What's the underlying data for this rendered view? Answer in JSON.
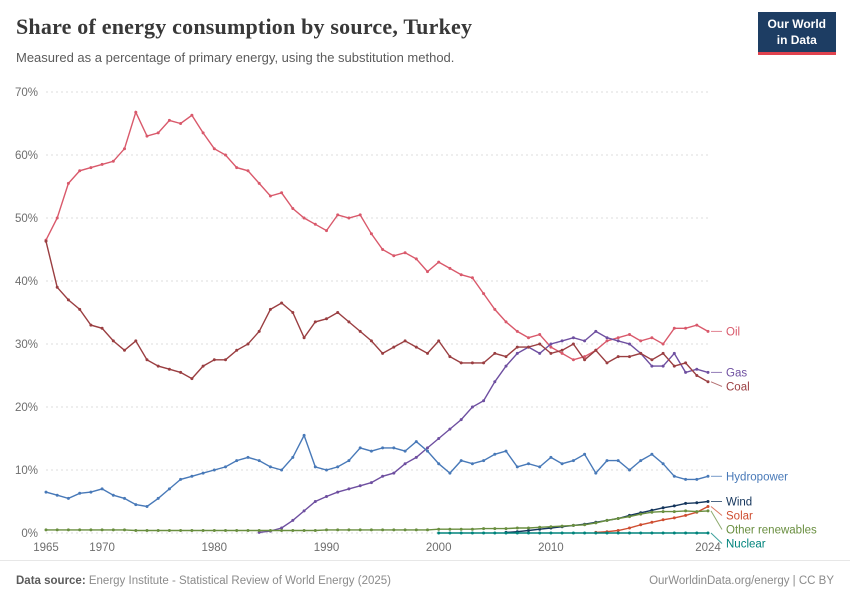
{
  "logo": {
    "line1": "Our World",
    "line2": "in Data",
    "bg_color": "#1d3d63",
    "accent_color": "#e0424e"
  },
  "footer": {
    "source_label": "Data source:",
    "source_text": " Energy Institute - Statistical Review of World Energy (2025)",
    "right_text": "OurWorldinData.org/energy | CC BY"
  },
  "chart_data": {
    "type": "line",
    "title": "Share of energy consumption by source, Turkey",
    "subtitle": "Measured as a percentage of primary energy, using the substitution method.",
    "ylim": [
      0,
      70
    ],
    "yticks": [
      0,
      10,
      20,
      30,
      40,
      50,
      60,
      70
    ],
    "xticks": [
      1965,
      1970,
      1980,
      1990,
      2000,
      2010,
      2024
    ],
    "ytick_suffix": "%",
    "grid": true,
    "legend_position": "right-end-labels",
    "years": [
      1965,
      1966,
      1967,
      1968,
      1969,
      1970,
      1971,
      1972,
      1973,
      1974,
      1975,
      1976,
      1977,
      1978,
      1979,
      1980,
      1981,
      1982,
      1983,
      1984,
      1985,
      1986,
      1987,
      1988,
      1989,
      1990,
      1991,
      1992,
      1993,
      1994,
      1995,
      1996,
      1997,
      1998,
      1999,
      2000,
      2001,
      2002,
      2003,
      2004,
      2005,
      2006,
      2007,
      2008,
      2009,
      2010,
      2011,
      2012,
      2013,
      2014,
      2015,
      2016,
      2017,
      2018,
      2019,
      2020,
      2021,
      2022,
      2023,
      2024
    ],
    "series": [
      {
        "name": "Oil",
        "color": "#d9596b",
        "values": [
          46.5,
          50,
          55.5,
          57.5,
          58,
          58.5,
          59,
          61,
          66.8,
          63,
          63.5,
          65.5,
          65,
          66.3,
          63.5,
          61,
          60,
          58,
          57.5,
          55.5,
          53.5,
          54,
          51.5,
          50,
          49,
          48,
          50.5,
          50,
          50.5,
          47.5,
          45,
          44,
          44.5,
          43.5,
          41.5,
          43,
          42,
          41,
          40.5,
          38,
          35.5,
          33.5,
          32,
          31,
          31.5,
          29.5,
          28.5,
          27.5,
          28,
          29,
          30.5,
          31,
          31.5,
          30.5,
          31,
          30,
          32.5,
          32.5,
          33,
          32
        ]
      },
      {
        "name": "Gas",
        "color": "#6e4fa0",
        "values": [
          null,
          null,
          null,
          null,
          null,
          null,
          null,
          null,
          null,
          null,
          null,
          null,
          null,
          null,
          null,
          null,
          null,
          null,
          null,
          0.1,
          0.3,
          0.8,
          2,
          3.5,
          5,
          5.8,
          6.5,
          7,
          7.5,
          8,
          9,
          9.5,
          11,
          12,
          13.5,
          15,
          16.5,
          18,
          20,
          21,
          24,
          26.5,
          28.5,
          29.5,
          28.5,
          30,
          30.5,
          31,
          30.5,
          32,
          31,
          30.5,
          30,
          28.5,
          26.5,
          26.5,
          28.5,
          25.5,
          26,
          25.5
        ]
      },
      {
        "name": "Coal",
        "color": "#9a3e41",
        "values": [
          46.3,
          39,
          37,
          35.5,
          33,
          32.5,
          30.5,
          29,
          30.5,
          27.5,
          26.5,
          26,
          25.5,
          24.5,
          26.5,
          27.5,
          27.5,
          29,
          30,
          32,
          35.5,
          36.5,
          35,
          31,
          33.5,
          34,
          35,
          33.5,
          32,
          30.5,
          28.5,
          29.5,
          30.5,
          29.5,
          28.5,
          30.5,
          28,
          27,
          27,
          27,
          28.5,
          28,
          29.5,
          29.5,
          30,
          28.5,
          29,
          30,
          27.5,
          29,
          27,
          28,
          28,
          28.5,
          27.5,
          28.5,
          26.5,
          27,
          25,
          24
        ]
      },
      {
        "name": "Hydropower",
        "color": "#4879b8",
        "values": [
          6.5,
          6,
          5.5,
          6.3,
          6.5,
          7,
          6,
          5.5,
          4.5,
          4.2,
          5.5,
          7,
          8.5,
          9,
          9.5,
          10,
          10.5,
          11.5,
          12,
          11.5,
          10.5,
          10,
          12,
          15.5,
          10.5,
          10,
          10.5,
          11.5,
          13.5,
          13,
          13.5,
          13.5,
          13,
          14.5,
          13,
          11,
          9.5,
          11.5,
          11,
          11.5,
          12.5,
          13,
          10.5,
          11,
          10.5,
          12,
          11,
          11.5,
          12.5,
          9.5,
          11.5,
          11.5,
          10,
          11.5,
          12.5,
          11,
          9,
          8.5,
          8.5,
          9
        ]
      },
      {
        "name": "Wind",
        "color": "#14355c",
        "values": [
          null,
          null,
          null,
          null,
          null,
          null,
          null,
          null,
          null,
          null,
          null,
          null,
          null,
          null,
          null,
          null,
          null,
          null,
          null,
          null,
          null,
          null,
          null,
          null,
          null,
          null,
          null,
          null,
          null,
          null,
          null,
          null,
          null,
          null,
          null,
          null,
          null,
          null,
          null,
          null,
          null,
          0.1,
          0.2,
          0.4,
          0.6,
          0.8,
          1,
          1.2,
          1.4,
          1.7,
          2,
          2.3,
          2.8,
          3.2,
          3.6,
          4,
          4.3,
          4.7,
          4.8,
          5
        ]
      },
      {
        "name": "Solar",
        "color": "#cf4e31",
        "values": [
          null,
          null,
          null,
          null,
          null,
          null,
          null,
          null,
          null,
          null,
          null,
          null,
          null,
          null,
          null,
          null,
          null,
          null,
          null,
          null,
          null,
          null,
          null,
          null,
          null,
          null,
          null,
          null,
          null,
          null,
          null,
          null,
          null,
          null,
          null,
          null,
          null,
          null,
          null,
          null,
          null,
          null,
          null,
          null,
          null,
          null,
          null,
          null,
          null,
          0.1,
          0.2,
          0.4,
          0.8,
          1.3,
          1.7,
          2.1,
          2.4,
          2.8,
          3.3,
          4.2
        ]
      },
      {
        "name": "Other renewables",
        "color": "#698e3f",
        "values": [
          0.5,
          0.5,
          0.5,
          0.5,
          0.5,
          0.5,
          0.5,
          0.5,
          0.4,
          0.4,
          0.4,
          0.4,
          0.4,
          0.4,
          0.4,
          0.4,
          0.4,
          0.4,
          0.4,
          0.4,
          0.4,
          0.4,
          0.4,
          0.4,
          0.4,
          0.5,
          0.5,
          0.5,
          0.5,
          0.5,
          0.5,
          0.5,
          0.5,
          0.5,
          0.5,
          0.6,
          0.6,
          0.6,
          0.6,
          0.7,
          0.7,
          0.7,
          0.8,
          0.8,
          0.9,
          1,
          1.1,
          1.2,
          1.3,
          1.6,
          2,
          2.3,
          2.6,
          3,
          3.3,
          3.4,
          3.4,
          3.5,
          3.4,
          3.5
        ]
      },
      {
        "name": "Nuclear",
        "color": "#00847c",
        "values": [
          null,
          null,
          null,
          null,
          null,
          null,
          null,
          null,
          null,
          null,
          null,
          null,
          null,
          null,
          null,
          null,
          null,
          null,
          null,
          null,
          null,
          null,
          null,
          null,
          null,
          null,
          null,
          null,
          null,
          null,
          null,
          null,
          null,
          null,
          null,
          0,
          0,
          0,
          0,
          0,
          0,
          0,
          0,
          0,
          0,
          0,
          0,
          0,
          0,
          0,
          0,
          0,
          0,
          0,
          0,
          0,
          0,
          0,
          0,
          0
        ]
      }
    ]
  }
}
